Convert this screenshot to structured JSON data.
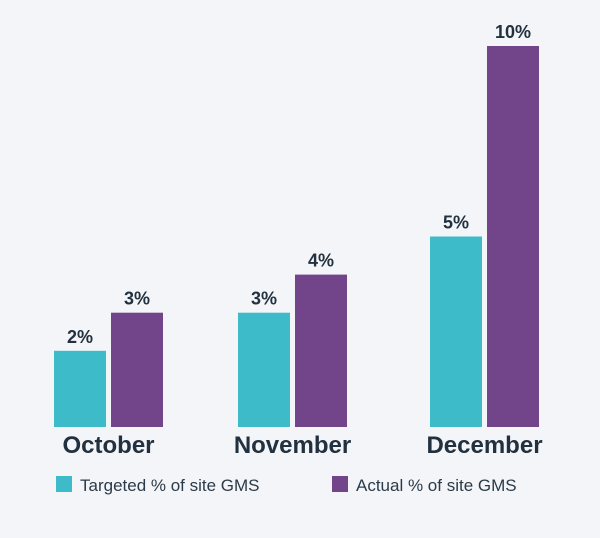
{
  "chart_data": {
    "type": "bar",
    "title": "",
    "xlabel": "",
    "ylabel": "",
    "ylim": [
      0,
      10
    ],
    "grid": false,
    "legend_position": "bottom",
    "categories": [
      "October",
      "November",
      "December"
    ],
    "series": [
      {
        "name": "Targeted % of site GMS",
        "color": "#3ebbc8",
        "values": [
          2,
          3,
          5
        ],
        "labels": [
          "2%",
          "3%",
          "5%"
        ]
      },
      {
        "name": "Actual % of site GMS",
        "color": "#72448a",
        "values": [
          3,
          4,
          10
        ],
        "labels": [
          "3%",
          "4%",
          "10%"
        ]
      }
    ]
  },
  "colors": {
    "background": "#f4f5f8",
    "text": "#22313f"
  }
}
